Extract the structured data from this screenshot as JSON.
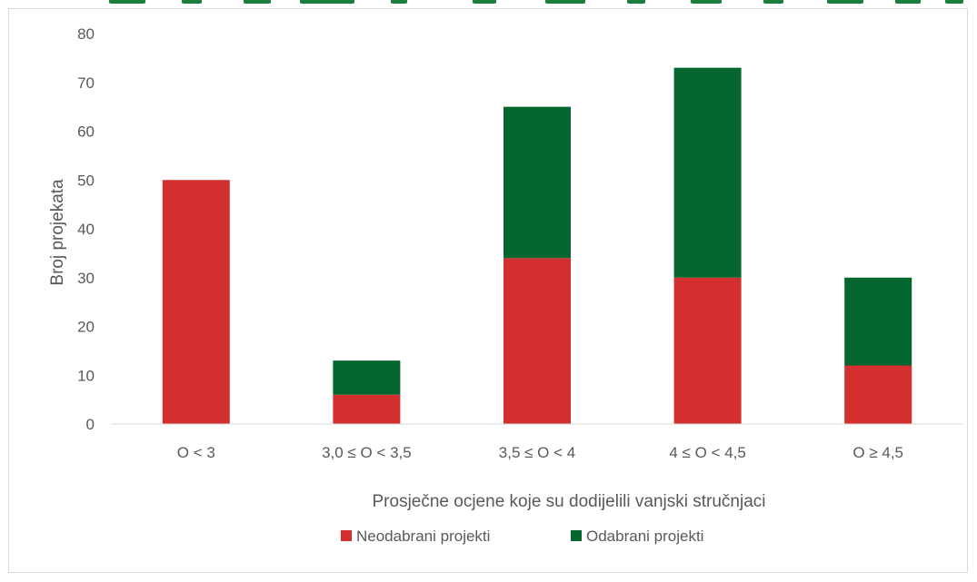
{
  "chart_data": {
    "type": "bar",
    "stacked": true,
    "categories": [
      "O < 3",
      "3,0 ≤ O < 3,5",
      "3,5 ≤ O < 4",
      "4 ≤ O < 4,5",
      "O ≥ 4,5"
    ],
    "series": [
      {
        "name": "Neodabrani projekti",
        "color": "#d32f2f",
        "values": [
          50,
          6,
          34,
          30,
          12
        ]
      },
      {
        "name": "Odabrani projekti",
        "color": "#05672f",
        "values": [
          0,
          7,
          31,
          43,
          18
        ]
      }
    ],
    "xlabel": "Prosječne ocjene koje su dodijelili vanjski stručnjaci",
    "ylabel": "Broj projekata",
    "ylim": [
      0,
      80
    ],
    "yticks": [
      0,
      10,
      20,
      30,
      40,
      50,
      60,
      70,
      80
    ],
    "grid": false,
    "legend_position": "bottom"
  }
}
